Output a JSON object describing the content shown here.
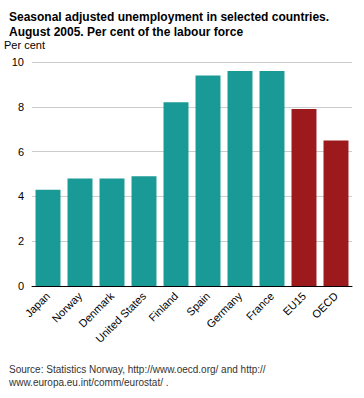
{
  "chart_data": {
    "type": "bar",
    "title": "Seasonal adjusted unemployment in selected countries. August 2005. Per cent of the labour force",
    "y_label": "Per cent",
    "source": "Source: Statistics Norway, http://www.oecd.org/ and http://www.europa.eu.int/comm/eurostat/ .",
    "categories": [
      "Japan",
      "Norway",
      "Denmark",
      "United States",
      "Finland",
      "Spain",
      "Germany",
      "France",
      "EU15",
      "OECD"
    ],
    "values": [
      4.3,
      4.8,
      4.8,
      4.9,
      8.2,
      9.4,
      9.6,
      9.6,
      7.9,
      6.5
    ],
    "colors": [
      "#1a9a97",
      "#1a9a97",
      "#1a9a97",
      "#1a9a97",
      "#1a9a97",
      "#1a9a97",
      "#1a9a97",
      "#1a9a97",
      "#9c1a1c",
      "#9c1a1c"
    ],
    "ylim": [
      0,
      10
    ],
    "yticks": [
      0,
      2,
      4,
      6,
      8,
      10
    ],
    "grid": true
  }
}
